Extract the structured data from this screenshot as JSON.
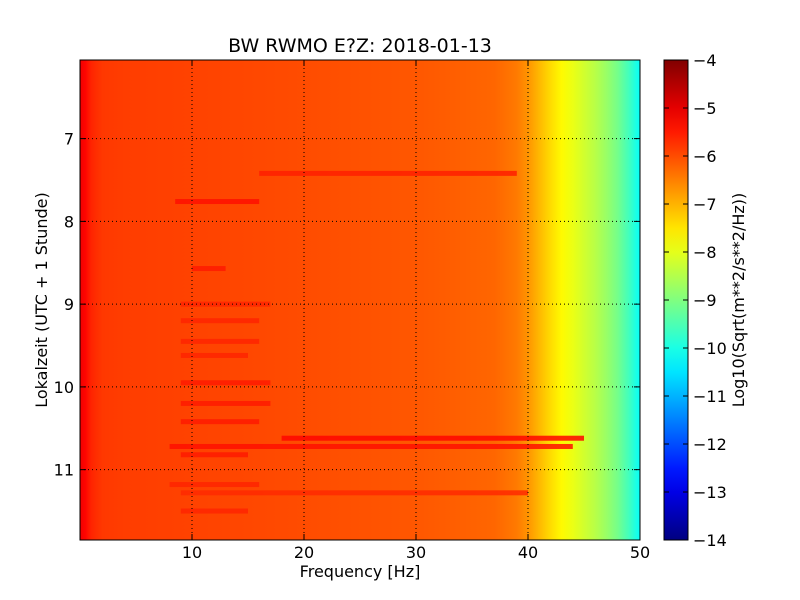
{
  "chart_data": {
    "type": "heatmap",
    "title": "BW RWMO E?Z: 2018-01-13",
    "xlabel": "Frequency [Hz]",
    "ylabel": "Lokalzeit (UTC + 1 Stunde)",
    "xlim": [
      0,
      50
    ],
    "ylim": [
      11.85,
      6.05
    ],
    "y_inverted": true,
    "x_ticks": [
      10,
      20,
      30,
      40,
      50
    ],
    "x_tick_labels": [
      "10",
      "20",
      "30",
      "40",
      "50"
    ],
    "y_ticks": [
      7,
      8,
      9,
      10,
      11
    ],
    "y_tick_labels": [
      "7",
      "8",
      "9",
      "10",
      "11"
    ],
    "grid": true,
    "colormap": "jet",
    "colorbar": {
      "label": "Log10(Sqrt(m**2/s**2/Hz))",
      "range": [
        -14,
        -4
      ],
      "ticks": [
        -4,
        -5,
        -6,
        -7,
        -8,
        -9,
        -10,
        -11,
        -12,
        -13,
        -14
      ],
      "tick_labels": [
        "−4",
        "−5",
        "−6",
        "−7",
        "−8",
        "−9",
        "−10",
        "−11",
        "−12",
        "−13",
        "−14"
      ]
    },
    "spectrum_profile": {
      "frequency_hz": [
        0,
        0.5,
        1,
        2,
        4,
        10,
        20,
        30,
        37,
        39,
        40,
        41,
        42,
        43,
        44,
        45,
        46,
        47,
        48,
        49,
        50
      ],
      "log10_amplitude": [
        -5.1,
        -5.3,
        -5.6,
        -5.8,
        -5.85,
        -5.9,
        -6.0,
        -6.1,
        -6.25,
        -6.45,
        -6.7,
        -7.05,
        -7.4,
        -7.7,
        -7.95,
        -8.2,
        -8.45,
        -8.75,
        -9.1,
        -9.6,
        -10.2
      ]
    },
    "bands": [
      {
        "time": 7.42,
        "f_start": 16,
        "f_end": 39,
        "log10_amplitude": -5.55
      },
      {
        "time": 7.76,
        "f_start": 8.5,
        "f_end": 16,
        "log10_amplitude": -5.4
      },
      {
        "time": 8.57,
        "f_start": 10,
        "f_end": 13,
        "log10_amplitude": -5.5
      },
      {
        "time": 9.0,
        "f_start": 9,
        "f_end": 17,
        "log10_amplitude": -5.6
      },
      {
        "time": 9.2,
        "f_start": 9,
        "f_end": 16,
        "log10_amplitude": -5.6
      },
      {
        "time": 9.45,
        "f_start": 9,
        "f_end": 16,
        "log10_amplitude": -5.6
      },
      {
        "time": 9.62,
        "f_start": 9,
        "f_end": 15,
        "log10_amplitude": -5.6
      },
      {
        "time": 9.95,
        "f_start": 9,
        "f_end": 17,
        "log10_amplitude": -5.5
      },
      {
        "time": 10.2,
        "f_start": 9,
        "f_end": 17,
        "log10_amplitude": -5.5
      },
      {
        "time": 10.42,
        "f_start": 9,
        "f_end": 16,
        "log10_amplitude": -5.5
      },
      {
        "time": 10.62,
        "f_start": 18,
        "f_end": 45,
        "log10_amplitude": -5.3
      },
      {
        "time": 10.72,
        "f_start": 8,
        "f_end": 44,
        "log10_amplitude": -5.4
      },
      {
        "time": 10.82,
        "f_start": 9,
        "f_end": 15,
        "log10_amplitude": -5.5
      },
      {
        "time": 11.18,
        "f_start": 8,
        "f_end": 16,
        "log10_amplitude": -5.6
      },
      {
        "time": 11.28,
        "f_start": 9,
        "f_end": 40,
        "log10_amplitude": -5.65
      },
      {
        "time": 11.5,
        "f_start": 9,
        "f_end": 15,
        "log10_amplitude": -5.6
      }
    ]
  }
}
